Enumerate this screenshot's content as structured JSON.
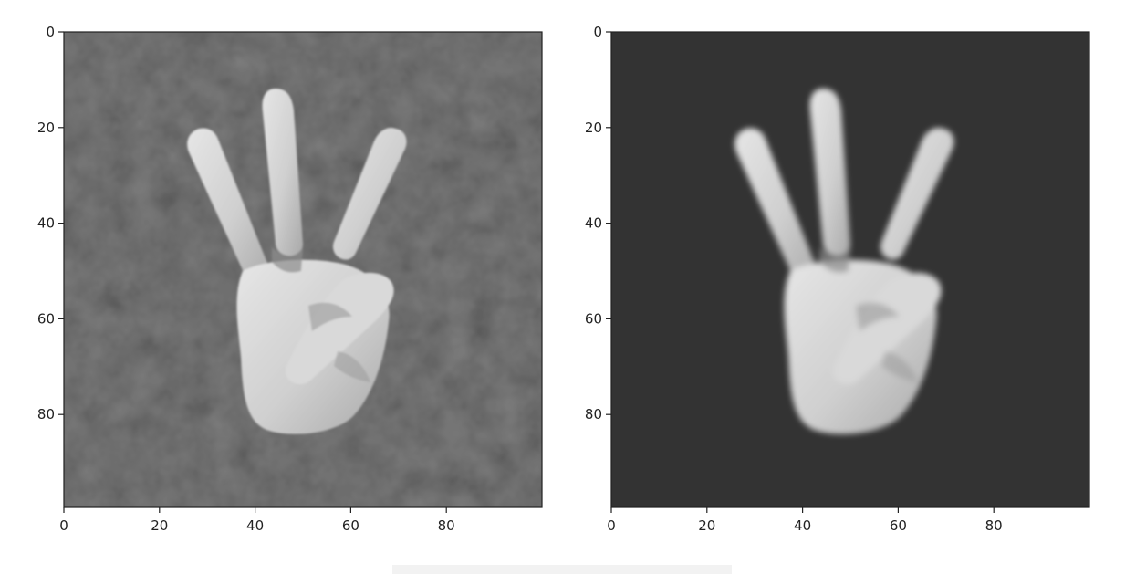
{
  "figure": {
    "panels": [
      {
        "name": "left",
        "image_description": "noisy grayscale hand showing three fingers",
        "background_style": "noisy",
        "xticks": [
          "0",
          "20",
          "40",
          "60",
          "80"
        ],
        "yticks": [
          "0",
          "20",
          "40",
          "60",
          "80"
        ]
      },
      {
        "name": "right",
        "image_description": "smoothed grayscale hand showing three fingers",
        "background_style": "smooth",
        "xticks": [
          "0",
          "20",
          "40",
          "60",
          "80"
        ],
        "yticks": [
          "0",
          "20",
          "40",
          "60",
          "80"
        ]
      }
    ]
  },
  "colors": {
    "axis": "#222222",
    "hand_light": "#e2e2e2",
    "hand_mid": "#bdbdbd",
    "hand_shadow": "#8e8e8e",
    "bg_noisy": "#444444",
    "bg_smooth": "#333333"
  }
}
